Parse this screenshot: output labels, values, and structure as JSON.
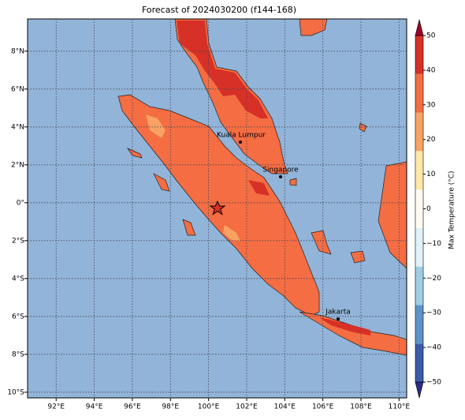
{
  "title": "Forecast of 2024030200 (f144-168)",
  "map": {
    "xlim": [
      90.5,
      110.4
    ],
    "ylim": [
      -10.3,
      9.7
    ],
    "grid": true,
    "xticks": [
      {
        "value": 92,
        "label": "92°E"
      },
      {
        "value": 94,
        "label": "94°E"
      },
      {
        "value": 96,
        "label": "96°E"
      },
      {
        "value": 98,
        "label": "98°E"
      },
      {
        "value": 100,
        "label": "100°E"
      },
      {
        "value": 102,
        "label": "102°E"
      },
      {
        "value": 104,
        "label": "104°E"
      },
      {
        "value": 106,
        "label": "106°E"
      },
      {
        "value": 108,
        "label": "108°E"
      },
      {
        "value": 110,
        "label": "110°E"
      }
    ],
    "yticks": [
      {
        "value": 8,
        "label": "8°N"
      },
      {
        "value": 6,
        "label": "6°N"
      },
      {
        "value": 4,
        "label": "4°N"
      },
      {
        "value": 2,
        "label": "2°N"
      },
      {
        "value": 0,
        "label": "0°"
      },
      {
        "value": -2,
        "label": "2°S"
      },
      {
        "value": -4,
        "label": "4°S"
      },
      {
        "value": -6,
        "label": "6°S"
      },
      {
        "value": -8,
        "label": "8°S"
      },
      {
        "value": -10,
        "label": "10°S"
      }
    ]
  },
  "places": [
    "Kuala Lumpur",
    "Singapore",
    "Jakarta"
  ],
  "colorbar": {
    "label": "Max Temperature (°C)",
    "lim": [
      -50,
      50
    ],
    "ticks": [
      {
        "value": -50,
        "label": "−50"
      },
      {
        "value": -40,
        "label": "−40"
      },
      {
        "value": -30,
        "label": "−30"
      },
      {
        "value": -20,
        "label": "−20"
      },
      {
        "value": -10,
        "label": "−10"
      },
      0,
      10,
      20,
      30,
      40,
      50
    ],
    "colors": [
      "#2c2b88",
      "#3a5ca8",
      "#5e93c8",
      "#a0cde3",
      "#def2f7",
      "#fffbf0",
      "#fee8a8",
      "#f9a264",
      "#f46d43",
      "#d73027",
      "#a50026"
    ]
  }
}
